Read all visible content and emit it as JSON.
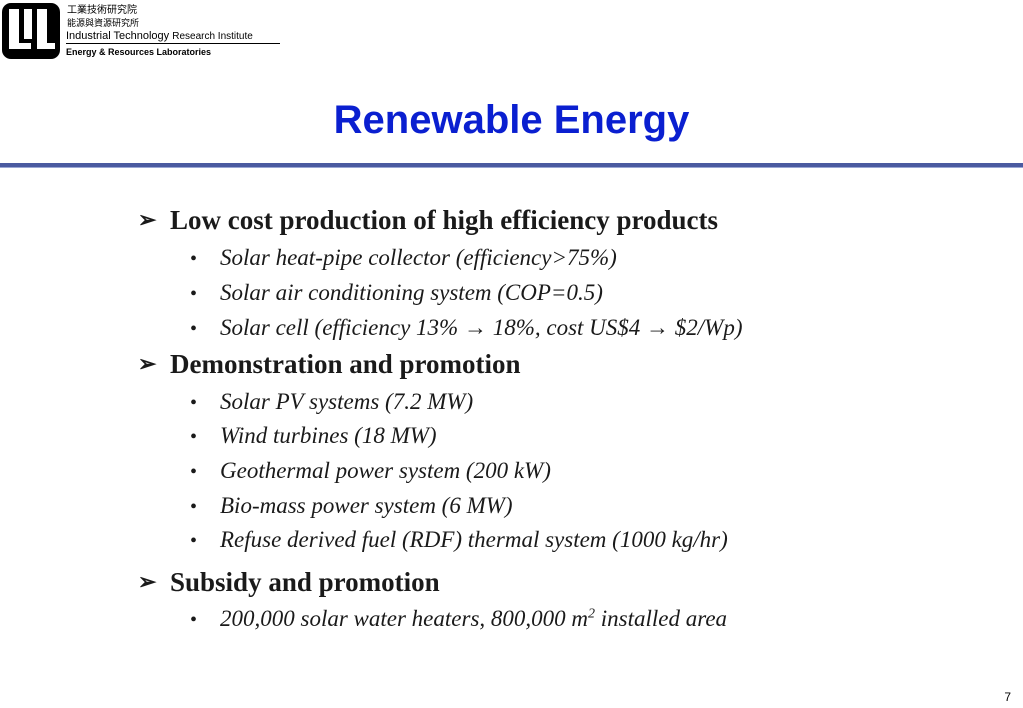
{
  "header": {
    "org_zh_1": "工業技術研究院",
    "org_zh_2": "能源與資源研究所",
    "org_en_1a": "Industrial Technology",
    "org_en_1b": "Research Institute",
    "org_en_2": "Energy & Resources Laboratories",
    "logo_icon": "itri-logo-icon"
  },
  "title": "Renewable Energy",
  "sections": [
    {
      "heading": "Low cost production of high efficiency products",
      "items": [
        "Solar heat-pipe collector (efficiency>75%)",
        "Solar air conditioning system (COP=0.5)",
        "Solar cell (efficiency 13% → 18%, cost US$4 → $2/Wp)"
      ]
    },
    {
      "heading": "Demonstration and promotion",
      "items": [
        "Solar PV systems (7.2 MW)",
        "Wind turbines (18 MW)",
        "Geothermal power system (200 kW)",
        "Bio-mass power system (6 MW)",
        "Refuse derived fuel (RDF) thermal system (1000 kg/hr)"
      ]
    },
    {
      "heading": "Subsidy and promotion",
      "items_rich": {
        "before": "200,000 solar water heaters, 800,000 m",
        "sup": "2",
        "after": " installed area"
      }
    }
  ],
  "bullet_glyph": "•",
  "section_glyph": "➢",
  "page_number": "7",
  "colors": {
    "title": "#0a1fd0",
    "rule": "#4a5aa0",
    "text": "#1a1a1a"
  }
}
